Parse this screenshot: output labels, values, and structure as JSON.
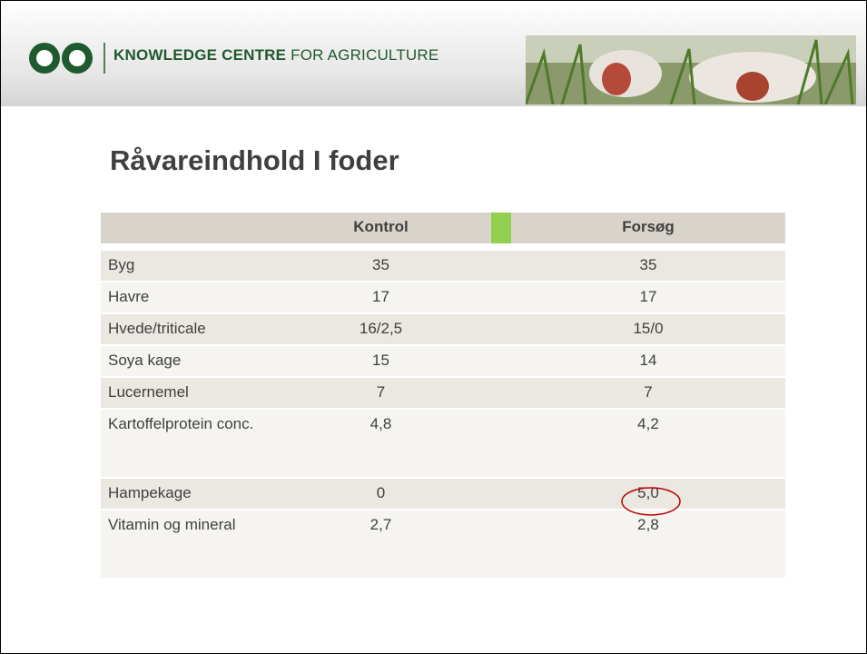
{
  "header": {
    "brand_bold": "KNOWLEDGE CENTRE",
    "brand_regular": "FOR AGRICULTURE"
  },
  "title": "Råvareindhold I foder",
  "table": {
    "columns": [
      "Kontrol",
      "Forsøg"
    ],
    "rows": [
      [
        "Byg",
        "35",
        "35"
      ],
      [
        "Havre",
        "17",
        "17"
      ],
      [
        "Hvede/triticale",
        "16/2,5",
        "15/0"
      ],
      [
        "Soya kage",
        "15",
        "14"
      ],
      [
        "Lucernemel",
        "7",
        "7"
      ],
      [
        "Kartoffelprotein conc.",
        "4,8",
        "4,2"
      ],
      [
        "Hampekage",
        "0",
        "5,0"
      ],
      [
        "Vitamin og mineral",
        "2,7",
        "2,8"
      ]
    ]
  }
}
